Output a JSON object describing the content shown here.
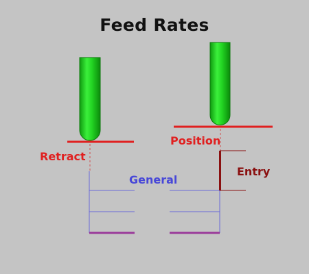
{
  "title": "Feed Rates",
  "labels": {
    "retract": "Retract",
    "position": "Position",
    "general": "General",
    "entry": "Entry"
  },
  "colors": {
    "background": "#c4c4c4",
    "tool": "#22cc22",
    "plane_line": "#e02020",
    "retract_text": "#e02020",
    "position_text": "#e02020",
    "general_text": "#4848d8",
    "general_lines": "#6a6ad8",
    "entry_text": "#8a1010",
    "entry_bracket": "#8a1010",
    "bottom_line": "#9a3a9a",
    "dash": "#d05050"
  },
  "icons": {
    "tool_left": "end-mill-tool",
    "tool_right": "end-mill-tool"
  }
}
